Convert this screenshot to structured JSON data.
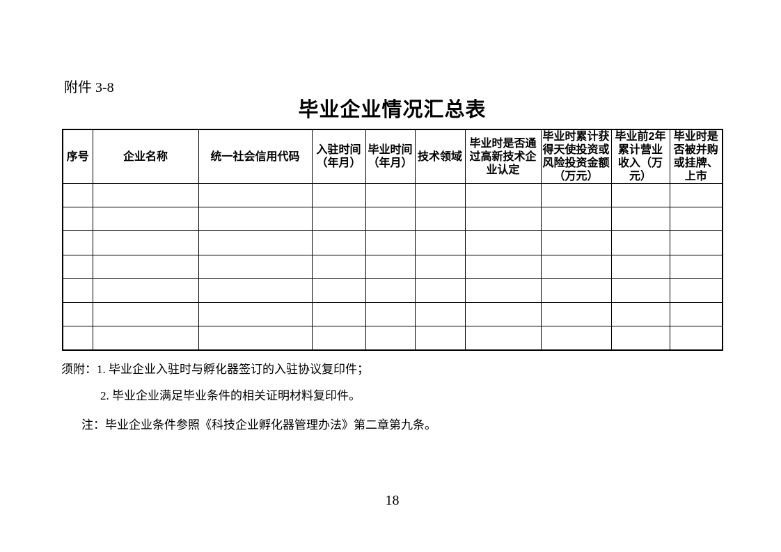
{
  "page": {
    "attachment_label": "附件 3-8",
    "title": "毕业企业情况汇总表",
    "page_number": "18"
  },
  "table": {
    "columns": [
      "序号",
      "企业名称",
      "统一社会信用代码",
      "入驻时间\n（年月）",
      "毕业时间\n（年月）",
      "技术领域",
      "毕业时是否通\n过高新技术企\n业认定",
      "毕业时累计获\n得天使投资或\n风险投资金额\n（万元）",
      "毕业前2年\n累计营业\n收入（万\n元）",
      "毕业时是\n否被并购\n或挂牌、\n上市"
    ],
    "empty_body_rows": 7,
    "columns_per_row": 10,
    "cell_value": ""
  },
  "notes": {
    "attachment_note_1": "须附：1. 毕业企业入驻时与孵化器签订的入驻协议复印件；",
    "attachment_note_2": "2. 毕业企业满足毕业条件的相关证明材料复印件。",
    "reference_note": "注：毕业企业条件参照《科技企业孵化器管理办法》第二章第九条。"
  },
  "colors": {
    "text": "#000000",
    "background": "#ffffff",
    "table_border": "#000000"
  }
}
